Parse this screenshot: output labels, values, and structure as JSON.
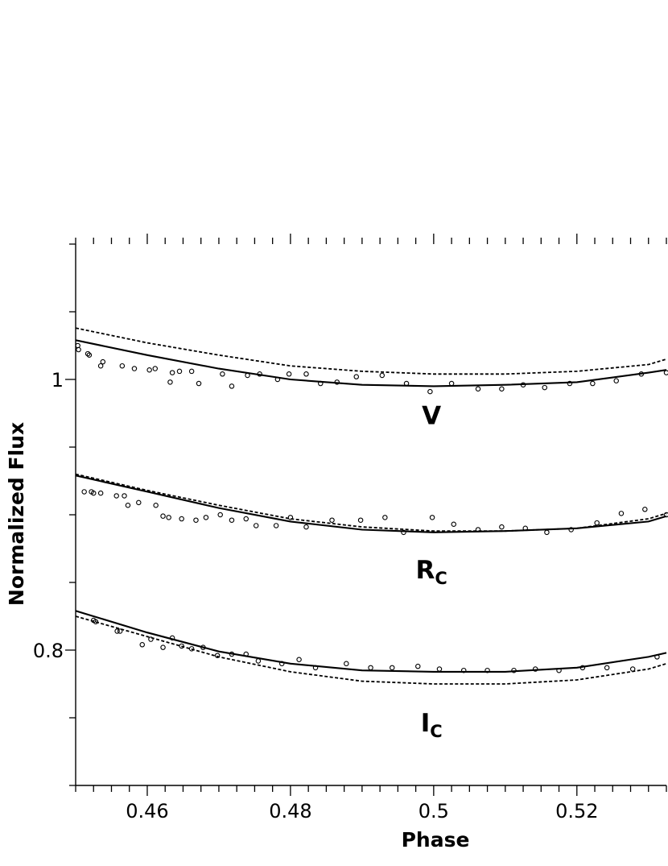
{
  "chart_data": {
    "type": "line",
    "xlabel": "Phase",
    "ylabel": "Normalized Flux",
    "xlim": [
      0.45,
      0.5325
    ],
    "ylim": [
      0.7,
      1.1
    ],
    "x_ticks": [
      {
        "value": 0.46,
        "label": "0.46"
      },
      {
        "value": 0.48,
        "label": "0.48"
      },
      {
        "value": 0.5,
        "label": "0.5"
      },
      {
        "value": 0.52,
        "label": "0.52"
      }
    ],
    "y_ticks": [
      {
        "value": 0.8,
        "label": "0.8"
      },
      {
        "value": 1.0,
        "label": "1"
      }
    ],
    "x_minor_step": 0.0025,
    "y_minor_step": 0.05,
    "grid": false,
    "colors": {
      "axis": "#000000",
      "curve": "#000000",
      "points": "#000000"
    },
    "annotations": [
      {
        "id": "v",
        "main": "V",
        "sub": "",
        "x": 0.4997,
        "y": 0.967
      },
      {
        "id": "r",
        "main": "R",
        "sub": "C",
        "x": 0.4997,
        "y": 0.853
      },
      {
        "id": "i",
        "main": "I",
        "sub": "C",
        "x": 0.4997,
        "y": 0.74
      }
    ],
    "bands": [
      {
        "id": "v",
        "model_solid": {
          "x": [
            0.45,
            0.46,
            0.47,
            0.48,
            0.49,
            0.5,
            0.51,
            0.52,
            0.53,
            0.5325
          ],
          "y": [
            1.029,
            1.018,
            1.008,
            1.0,
            0.996,
            0.995,
            0.996,
            0.998,
            1.005,
            1.007
          ]
        },
        "model_dashed": {
          "x": [
            0.45,
            0.46,
            0.47,
            0.48,
            0.49,
            0.5,
            0.51,
            0.52,
            0.53,
            0.5325
          ],
          "y": [
            1.038,
            1.027,
            1.018,
            1.01,
            1.006,
            1.004,
            1.004,
            1.006,
            1.011,
            1.015
          ]
        },
        "observed": {
          "x": [
            0.4503,
            0.4504,
            0.4517,
            0.4519,
            0.4535,
            0.4538,
            0.4565,
            0.4582,
            0.4603,
            0.4611,
            0.4632,
            0.4635,
            0.4645,
            0.4662,
            0.4672,
            0.4705,
            0.4718,
            0.474,
            0.4757,
            0.4782,
            0.4798,
            0.4822,
            0.4842,
            0.4865,
            0.4892,
            0.4928,
            0.4962,
            0.4995,
            0.5025,
            0.5062,
            0.5095,
            0.5125,
            0.5155,
            0.519,
            0.5222,
            0.5255,
            0.529,
            0.5325
          ],
          "y": [
            1.025,
            1.022,
            1.019,
            1.018,
            1.01,
            1.013,
            1.01,
            1.008,
            1.007,
            1.008,
            0.998,
            1.005,
            1.006,
            1.006,
            0.997,
            1.004,
            0.995,
            1.003,
            1.004,
            1.0,
            1.004,
            1.004,
            0.997,
            0.998,
            1.002,
            1.003,
            0.997,
            0.991,
            0.997,
            0.993,
            0.993,
            0.996,
            0.994,
            0.997,
            0.997,
            0.999,
            1.004,
            1.005
          ]
        }
      },
      {
        "id": "r",
        "model_solid": {
          "x": [
            0.45,
            0.46,
            0.47,
            0.48,
            0.49,
            0.5,
            0.51,
            0.52,
            0.53,
            0.5325
          ],
          "y": [
            0.929,
            0.917,
            0.905,
            0.895,
            0.889,
            0.887,
            0.888,
            0.89,
            0.895,
            0.899
          ]
        },
        "model_dashed": {
          "x": [
            0.45,
            0.46,
            0.47,
            0.48,
            0.49,
            0.5,
            0.51,
            0.52,
            0.53,
            0.5325
          ],
          "y": [
            0.93,
            0.918,
            0.907,
            0.897,
            0.891,
            0.888,
            0.888,
            0.89,
            0.897,
            0.901
          ]
        },
        "observed": {
          "x": [
            0.4512,
            0.4522,
            0.4525,
            0.4535,
            0.4557,
            0.4568,
            0.4573,
            0.4588,
            0.4612,
            0.4622,
            0.463,
            0.4648,
            0.4668,
            0.4682,
            0.4702,
            0.4718,
            0.4738,
            0.4752,
            0.478,
            0.48,
            0.4822,
            0.4858,
            0.4898,
            0.4932,
            0.4958,
            0.4998,
            0.5028,
            0.5062,
            0.5095,
            0.5128,
            0.5158,
            0.5192,
            0.5228,
            0.5262,
            0.5295,
            0.5325
          ],
          "y": [
            0.917,
            0.917,
            0.916,
            0.916,
            0.914,
            0.914,
            0.907,
            0.909,
            0.907,
            0.899,
            0.898,
            0.897,
            0.896,
            0.898,
            0.9,
            0.896,
            0.897,
            0.892,
            0.892,
            0.898,
            0.891,
            0.896,
            0.896,
            0.898,
            0.887,
            0.898,
            0.893,
            0.889,
            0.891,
            0.89,
            0.887,
            0.889,
            0.894,
            0.901,
            0.904,
            0.9
          ]
        }
      },
      {
        "id": "i",
        "model_solid": {
          "x": [
            0.45,
            0.46,
            0.47,
            0.48,
            0.49,
            0.5,
            0.51,
            0.52,
            0.53,
            0.5325
          ],
          "y": [
            0.829,
            0.813,
            0.799,
            0.79,
            0.785,
            0.784,
            0.784,
            0.787,
            0.795,
            0.798
          ]
        },
        "model_dashed": {
          "x": [
            0.45,
            0.46,
            0.47,
            0.48,
            0.49,
            0.5,
            0.51,
            0.52,
            0.53,
            0.5325
          ],
          "y": [
            0.825,
            0.81,
            0.795,
            0.784,
            0.777,
            0.775,
            0.775,
            0.778,
            0.786,
            0.79
          ]
        },
        "observed": {
          "x": [
            0.4525,
            0.4528,
            0.4558,
            0.4562,
            0.4593,
            0.4605,
            0.4622,
            0.4635,
            0.4648,
            0.4662,
            0.4678,
            0.4698,
            0.4718,
            0.4738,
            0.4755,
            0.4788,
            0.4812,
            0.4835,
            0.4878,
            0.4912,
            0.4942,
            0.4978,
            0.5008,
            0.5042,
            0.5075,
            0.5112,
            0.5142,
            0.5175,
            0.5208,
            0.5242,
            0.5278,
            0.5312
          ],
          "y": [
            0.822,
            0.821,
            0.814,
            0.814,
            0.804,
            0.808,
            0.802,
            0.809,
            0.803,
            0.801,
            0.802,
            0.796,
            0.797,
            0.797,
            0.792,
            0.79,
            0.793,
            0.787,
            0.79,
            0.787,
            0.787,
            0.788,
            0.786,
            0.785,
            0.785,
            0.785,
            0.786,
            0.785,
            0.787,
            0.787,
            0.786,
            0.795
          ]
        }
      }
    ]
  }
}
